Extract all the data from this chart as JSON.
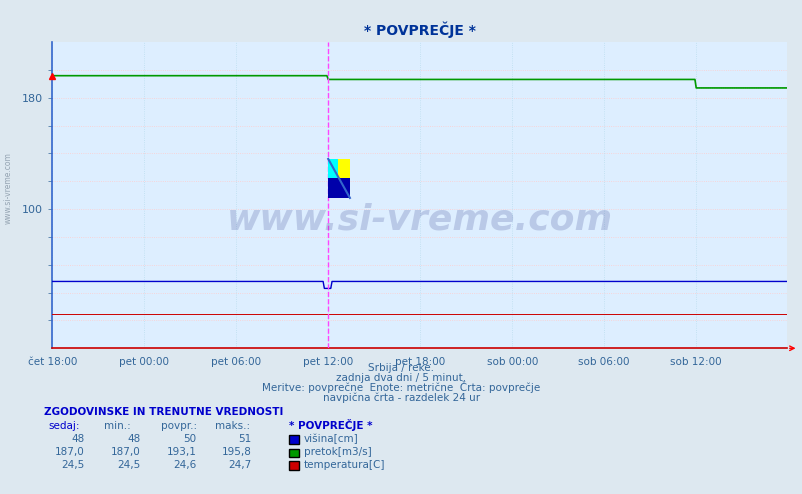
{
  "title": "* POVPREČJE *",
  "bg_color": "#dde8f0",
  "plot_bg_color": "#ddeeff",
  "grid_h_color": "#ffcccc",
  "grid_v_color": "#bbddee",
  "x_ticks_labels": [
    "čet 18:00",
    "pet 00:00",
    "pet 06:00",
    "pet 12:00",
    "pet 18:00",
    "sob 00:00",
    "sob 06:00",
    "sob 12:00"
  ],
  "x_ticks_pos": [
    0,
    72,
    144,
    216,
    288,
    360,
    432,
    504
  ],
  "n_points": 576,
  "ylim": [
    0,
    220
  ],
  "y_ticks_show": [
    100,
    180
  ],
  "y_ticks_all": [
    20,
    40,
    60,
    80,
    100,
    120,
    140,
    160,
    180,
    200
  ],
  "visina_val": 48,
  "pretok_val_1": 195.8,
  "pretok_val_2": 193.1,
  "pretok_drop_at": 216,
  "pretok_drop2_at": 504,
  "pretok_drop2_val": 187.0,
  "temp_val": 24.5,
  "title_color": "#003399",
  "line_blue_color": "#0000cc",
  "line_green_color": "#009900",
  "line_red_color": "#cc0000",
  "vline_color": "#ff44ff",
  "vline_position": 216,
  "left_spine_color": "#3366cc",
  "bottom_spine_color": "#cc0000",
  "watermark_text": "www.si-vreme.com",
  "watermark_color": "#1a237e",
  "watermark_alpha": 0.18,
  "subtitle_lines": [
    "Srbija / reke.",
    "zadnja dva dni / 5 minut.",
    "Meritve: povprečne  Enote: metrične  Črta: povprečje",
    "navpična črta - razdelek 24 ur"
  ],
  "table_header": "ZGODOVINSKE IN TRENUTNE VREDNOSTI",
  "table_col1": "sedaj:",
  "table_col2": "min.:",
  "table_col3": "povpr.:",
  "table_col4": "maks.:",
  "table_col5": "* POVPREČJE *",
  "row1": [
    48,
    48,
    50,
    51
  ],
  "row2": [
    187.0,
    187.0,
    193.1,
    195.8
  ],
  "row3": [
    24.5,
    24.5,
    24.6,
    24.7
  ],
  "legend_labels": [
    "višina[cm]",
    "pretok[m3/s]",
    "temperatura[C]"
  ],
  "legend_colors": [
    "#0000cc",
    "#009900",
    "#cc0000"
  ],
  "tick_label_color": "#336699",
  "text_color": "#336699"
}
